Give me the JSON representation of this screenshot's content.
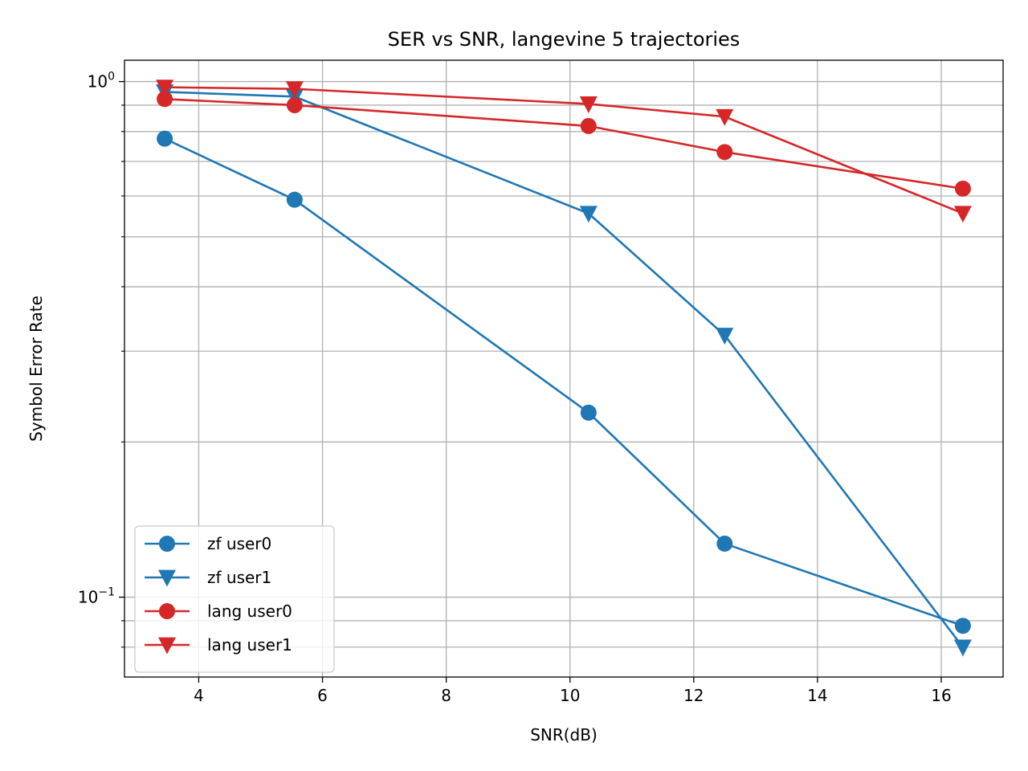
{
  "chart_data": {
    "type": "line",
    "title": "SER vs SNR, langevine 5 trajectories",
    "xlabel": "SNR(dB)",
    "ylabel": "Symbol Error Rate",
    "xlim": [
      2.8,
      17.0
    ],
    "ylim": [
      0.07,
      1.1
    ],
    "yscale": "log",
    "grid": true,
    "legend_position": "lower-left",
    "x_ticks": [
      4,
      6,
      8,
      10,
      12,
      14,
      16
    ],
    "x_tick_labels": [
      "4",
      "6",
      "8",
      "10",
      "12",
      "14",
      "16"
    ],
    "y_major_ticks": [
      0.1,
      1.0
    ],
    "y_major_tick_labels": [
      {
        "base": "10",
        "exp": "−1"
      },
      {
        "base": "10",
        "exp": "0"
      }
    ],
    "y_minor_ticks": [
      0.08,
      0.09,
      0.2,
      0.3,
      0.4,
      0.5,
      0.6,
      0.7,
      0.8,
      0.9
    ],
    "x": [
      3.45,
      5.55,
      10.3,
      12.5,
      16.35
    ],
    "series": [
      {
        "name": "zf user0",
        "color": "#1f77b4",
        "marker": "circle",
        "values": [
          0.775,
          0.59,
          0.228,
          0.127,
          0.088
        ]
      },
      {
        "name": "zf user1",
        "color": "#1f77b4",
        "marker": "triangle-down",
        "values": [
          0.955,
          0.935,
          0.555,
          0.322,
          0.08
        ]
      },
      {
        "name": "lang user0",
        "color": "#d62728",
        "marker": "circle",
        "values": [
          0.925,
          0.9,
          0.82,
          0.73,
          0.62
        ]
      },
      {
        "name": "lang user1",
        "color": "#d62728",
        "marker": "triangle-down",
        "values": [
          0.975,
          0.968,
          0.905,
          0.855,
          0.555
        ]
      }
    ]
  }
}
